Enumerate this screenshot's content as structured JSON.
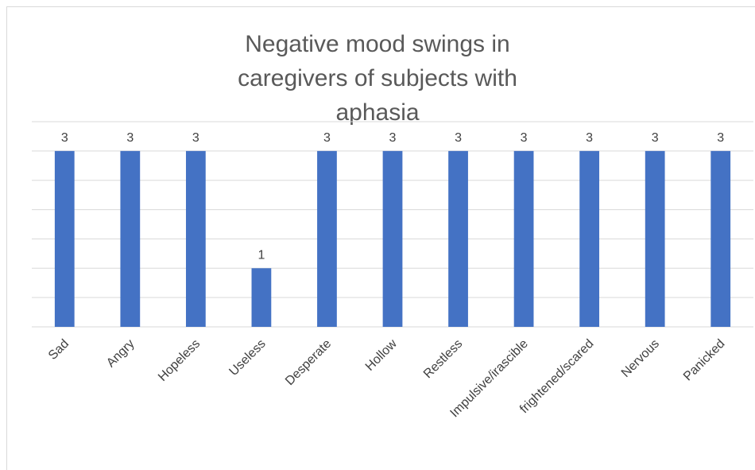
{
  "chart_data": {
    "type": "bar",
    "title": "Negative mood swings in caregivers of subjects with aphasia",
    "categories": [
      "Sad",
      "Angry",
      "Hopeless",
      "Useless",
      "Desperate",
      "Hollow",
      "Restless",
      "Impulsive/irascible",
      "frightened/scared",
      "Nervous",
      "Panicked"
    ],
    "values": [
      3,
      3,
      3,
      1,
      3,
      3,
      3,
      3,
      3,
      3,
      3
    ],
    "color": "#4472c4",
    "ylim": [
      0,
      3.5
    ],
    "yticks": [
      0,
      0.5,
      1,
      1.5,
      2,
      2.5,
      3,
      3.5
    ],
    "ytick_labels": false,
    "grid": true,
    "data_labels": true
  }
}
